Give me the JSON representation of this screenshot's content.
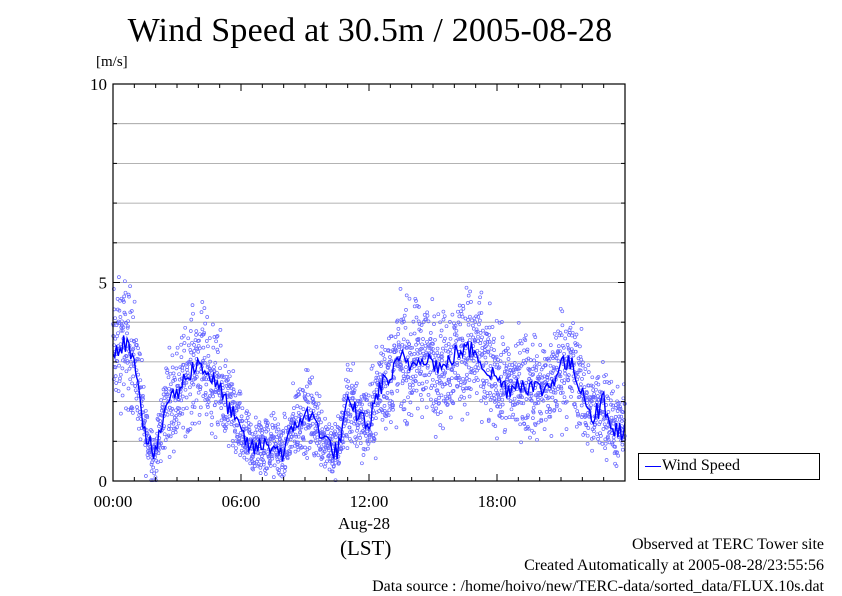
{
  "title": "Wind Speed at 30.5m / 2005-08-28",
  "unit_label": "[m/s]",
  "date_label": "Aug-28",
  "tz_label": "(LST)",
  "footer": {
    "site": "Observed at TERC Tower site",
    "created": "Created Automatically at 2005-08-28/23:55:56",
    "source": "Data source : /home/hoivo/new/TERC-data/sorted_data/FLUX.10s.dat"
  },
  "colors": {
    "line": "#0000ff",
    "points": "#6666ff",
    "grid": "#9a9a9a"
  },
  "chart_data": {
    "type": "line",
    "title": "Wind Speed at 30.5m / 2005-08-28",
    "ylabel": "[m/s]",
    "xlabel": "(LST)",
    "xlim": [
      0,
      24
    ],
    "ylim": [
      0,
      10
    ],
    "x_ticks": [
      "00:00",
      "06:00",
      "12:00",
      "18:00"
    ],
    "y_ticks": [
      "0",
      "5",
      "10"
    ],
    "grid": true,
    "legend": {
      "placement": "right-bottom",
      "entries": [
        "Wind Speed"
      ]
    },
    "series": [
      {
        "name": "Wind Speed",
        "x": [
          0,
          0.5,
          1,
          1.5,
          2,
          2.5,
          3,
          3.5,
          4,
          4.5,
          5,
          5.5,
          6,
          6.5,
          7,
          7.5,
          8,
          8.5,
          9,
          9.5,
          10,
          10.5,
          11,
          11.5,
          12,
          12.5,
          13,
          13.5,
          14,
          14.5,
          15,
          15.5,
          16,
          16.5,
          17,
          17.5,
          18,
          18.5,
          19,
          19.5,
          20,
          20.5,
          21,
          21.5,
          22,
          22.5,
          23,
          23.5
        ],
        "values": [
          3.3,
          3.5,
          3.2,
          1.2,
          0.6,
          2.0,
          2.2,
          2.7,
          3.0,
          2.7,
          2.3,
          1.8,
          1.2,
          0.8,
          0.9,
          0.9,
          0.7,
          1.4,
          1.7,
          1.5,
          1.0,
          0.7,
          1.9,
          1.7,
          1.4,
          2.4,
          2.6,
          3.1,
          2.9,
          3.2,
          3.0,
          2.8,
          3.2,
          3.3,
          3.3,
          2.8,
          2.6,
          2.3,
          2.5,
          2.4,
          2.3,
          2.4,
          3.0,
          2.9,
          2.3,
          1.6,
          2.0,
          1.3
        ]
      }
    ]
  }
}
